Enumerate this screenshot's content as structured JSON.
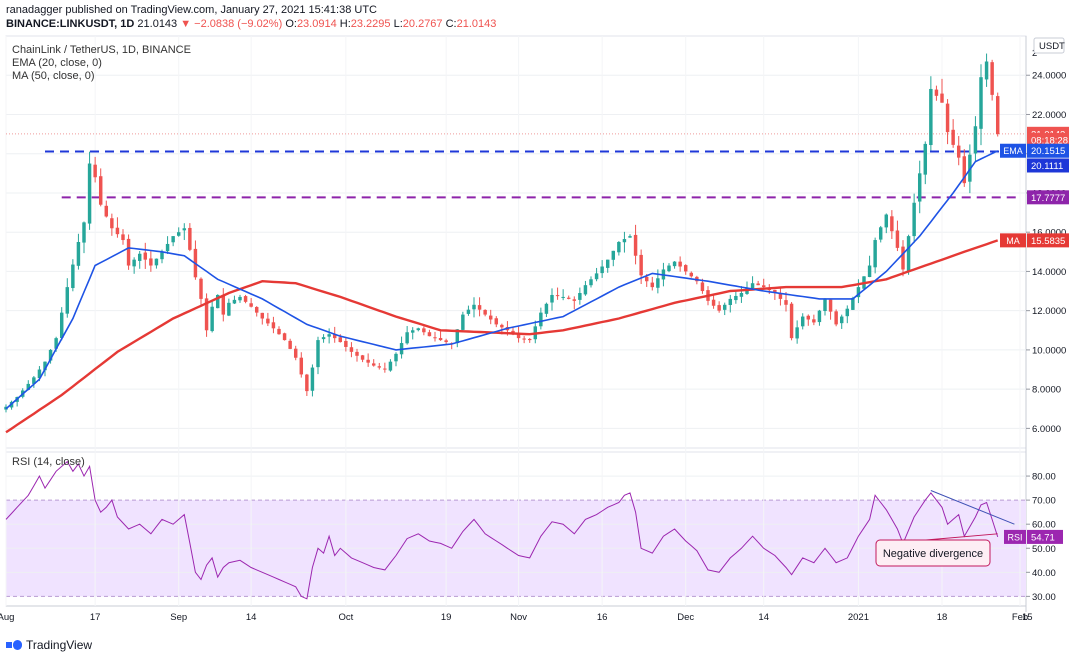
{
  "header": {
    "line1": "ranadagger published on TradingView.com, January 27, 2021 15:41:38 UTC",
    "symbol": "BINANCE:LINKUSDT, 1D",
    "price": "21.0143",
    "change": "▼ −2.0838 (−9.02%)",
    "o_label": "O:",
    "o": "23.0914",
    "h_label": "H:",
    "h": "23.2295",
    "l_label": "L:",
    "l": "20.2767",
    "c_label": "C:",
    "c": "21.0143"
  },
  "legend": {
    "title": "ChainLink / TetherUS, 1D, BINANCE",
    "ema": "EMA (20, close, 0)",
    "ma": "MA (50, close, 0)",
    "rsi": "RSI (14, close)"
  },
  "currency": "USDT",
  "annotation": "Negative divergence",
  "footer": "TradingView",
  "colors": {
    "up": "#26a69a",
    "down": "#ef5350",
    "ema": "#1e53e5",
    "ma": "#e53935",
    "rsi": "#9c27b0",
    "blue_level": "#1e37d8",
    "purple_level": "#8e24aa",
    "band": "#f0e3ff",
    "grid": "#eef0f3",
    "text": "#131722"
  },
  "chart_data": [
    {
      "type": "candlestick",
      "title": "ChainLink / TetherUS, 1D, BINANCE",
      "ylabel": "USDT",
      "ylim": [
        5.0,
        26.0
      ],
      "y_ticks": [
        6,
        8,
        10,
        12,
        14,
        16,
        18,
        20,
        22,
        24
      ],
      "y_tick_labels": [
        "6.0000",
        "8.0000",
        "10.0000",
        "12.0000",
        "14.0000",
        "16.0000",
        "18.0000",
        "20.0000",
        "22.0000",
        "24.0000"
      ],
      "top_tick_label": "2",
      "x_range_days": [
        0,
        182
      ],
      "x_ticks": [
        {
          "day": 0,
          "label": "Aug"
        },
        {
          "day": 16,
          "label": "17"
        },
        {
          "day": 31,
          "label": "Sep"
        },
        {
          "day": 44,
          "label": "14"
        },
        {
          "day": 61,
          "label": "Oct"
        },
        {
          "day": 79,
          "label": "19"
        },
        {
          "day": 92,
          "label": "Nov"
        },
        {
          "day": 107,
          "label": "16"
        },
        {
          "day": 122,
          "label": "Dec"
        },
        {
          "day": 136,
          "label": "14"
        },
        {
          "day": 153,
          "label": "2021"
        },
        {
          "day": 168,
          "label": "18"
        },
        {
          "day": 182,
          "label": "Feb"
        }
      ],
      "trailing_tick": "15",
      "close_anchors": [
        [
          0,
          7.1
        ],
        [
          2,
          7.6
        ],
        [
          5,
          8.6
        ],
        [
          7,
          9.4
        ],
        [
          9,
          10.6
        ],
        [
          11,
          13.2
        ],
        [
          13,
          15.5
        ],
        [
          14,
          16.5
        ],
        [
          15,
          19.5
        ],
        [
          16,
          18.8
        ],
        [
          17,
          17.4
        ],
        [
          18,
          16.8
        ],
        [
          19,
          16.2
        ],
        [
          21,
          15.6
        ],
        [
          22,
          14.3
        ],
        [
          24,
          14.9
        ],
        [
          26,
          14.3
        ],
        [
          28,
          15.0
        ],
        [
          30,
          15.8
        ],
        [
          32,
          16.2
        ],
        [
          33,
          15.1
        ],
        [
          34,
          13.7
        ],
        [
          35,
          12.6
        ],
        [
          36,
          11.0
        ],
        [
          37,
          12.2
        ],
        [
          38,
          12.8
        ],
        [
          39,
          11.8
        ],
        [
          40,
          12.4
        ],
        [
          42,
          12.7
        ],
        [
          44,
          12.2
        ],
        [
          46,
          11.6
        ],
        [
          48,
          11.1
        ],
        [
          50,
          10.5
        ],
        [
          52,
          9.6
        ],
        [
          54,
          7.9
        ],
        [
          55,
          9.1
        ],
        [
          56,
          10.5
        ],
        [
          58,
          10.8
        ],
        [
          60,
          10.4
        ],
        [
          62,
          9.9
        ],
        [
          64,
          9.5
        ],
        [
          66,
          9.2
        ],
        [
          68,
          9.0
        ],
        [
          70,
          9.8
        ],
        [
          72,
          10.9
        ],
        [
          74,
          11.1
        ],
        [
          76,
          10.7
        ],
        [
          78,
          10.5
        ],
        [
          80,
          10.3
        ],
        [
          82,
          11.8
        ],
        [
          84,
          12.3
        ],
        [
          86,
          11.8
        ],
        [
          88,
          11.3
        ],
        [
          90,
          11.0
        ],
        [
          92,
          10.6
        ],
        [
          94,
          10.5
        ],
        [
          96,
          11.9
        ],
        [
          98,
          12.8
        ],
        [
          100,
          12.7
        ],
        [
          102,
          12.5
        ],
        [
          104,
          13.3
        ],
        [
          106,
          13.9
        ],
        [
          108,
          14.6
        ],
        [
          110,
          15.5
        ],
        [
          112,
          15.8
        ],
        [
          114,
          13.8
        ],
        [
          116,
          13.2
        ],
        [
          118,
          14.1
        ],
        [
          120,
          14.5
        ],
        [
          122,
          14.0
        ],
        [
          124,
          13.5
        ],
        [
          126,
          12.5
        ],
        [
          128,
          12.0
        ],
        [
          130,
          12.6
        ],
        [
          132,
          12.9
        ],
        [
          134,
          13.4
        ],
        [
          136,
          13.2
        ],
        [
          138,
          12.9
        ],
        [
          140,
          12.3
        ],
        [
          141,
          10.6
        ],
        [
          143,
          11.7
        ],
        [
          145,
          11.4
        ],
        [
          147,
          12.6
        ],
        [
          149,
          11.3
        ],
        [
          151,
          12.1
        ],
        [
          153,
          13.2
        ],
        [
          155,
          14.3
        ],
        [
          156,
          15.6
        ],
        [
          158,
          16.9
        ],
        [
          160,
          15.2
        ],
        [
          161,
          14.1
        ],
        [
          163,
          17.5
        ],
        [
          165,
          20.5
        ],
        [
          166,
          23.3
        ],
        [
          168,
          22.6
        ],
        [
          169,
          21.1
        ],
        [
          171,
          19.8
        ],
        [
          172,
          18.5
        ],
        [
          174,
          21.4
        ],
        [
          175,
          23.9
        ],
        [
          176,
          24.7
        ],
        [
          177,
          23.0
        ],
        [
          178,
          21.0
        ]
      ],
      "ema_anchors": [
        [
          0,
          7.0
        ],
        [
          6,
          8.5
        ],
        [
          12,
          11.6
        ],
        [
          16,
          14.3
        ],
        [
          22,
          15.2
        ],
        [
          28,
          15.0
        ],
        [
          32,
          14.8
        ],
        [
          38,
          13.6
        ],
        [
          46,
          12.6
        ],
        [
          54,
          11.3
        ],
        [
          60,
          10.7
        ],
        [
          70,
          10.0
        ],
        [
          80,
          10.3
        ],
        [
          90,
          11.1
        ],
        [
          100,
          11.7
        ],
        [
          110,
          13.2
        ],
        [
          116,
          13.9
        ],
        [
          126,
          13.5
        ],
        [
          136,
          13.0
        ],
        [
          146,
          12.6
        ],
        [
          152,
          12.6
        ],
        [
          158,
          14.0
        ],
        [
          164,
          15.8
        ],
        [
          170,
          18.0
        ],
        [
          174,
          19.6
        ],
        [
          178,
          20.15
        ]
      ],
      "ma_anchors": [
        [
          0,
          5.8
        ],
        [
          10,
          7.7
        ],
        [
          20,
          9.9
        ],
        [
          30,
          11.6
        ],
        [
          40,
          12.9
        ],
        [
          46,
          13.5
        ],
        [
          52,
          13.4
        ],
        [
          60,
          12.7
        ],
        [
          70,
          11.7
        ],
        [
          78,
          11.0
        ],
        [
          86,
          10.9
        ],
        [
          94,
          10.8
        ],
        [
          100,
          11.0
        ],
        [
          110,
          11.6
        ],
        [
          120,
          12.4
        ],
        [
          130,
          13.0
        ],
        [
          140,
          13.2
        ],
        [
          150,
          13.2
        ],
        [
          158,
          13.6
        ],
        [
          166,
          14.4
        ],
        [
          172,
          15.0
        ],
        [
          178,
          15.58
        ]
      ],
      "levels": [
        {
          "name": "blue-resistance",
          "value": 20.1111,
          "color": "#1e37d8",
          "label": "20.1111"
        },
        {
          "name": "purple-support",
          "value": 17.7777,
          "color": "#8e24aa",
          "label": "17.7777"
        }
      ],
      "price_tags": [
        {
          "name": "last-price",
          "label": "21.0143",
          "value": 21.0143,
          "color": "#ef5350"
        },
        {
          "name": "countdown",
          "label": "08:18:28",
          "value": 20.7,
          "color": "#ef5350"
        },
        {
          "name": "ema-value",
          "prefix": "EMA",
          "label": "20.1515",
          "value": 20.1515,
          "color": "#1e53e5"
        },
        {
          "name": "blue-level",
          "label": "20.1111",
          "value": 19.4,
          "color": "#1e37d8"
        },
        {
          "name": "purple-level",
          "label": "17.7777",
          "value": 17.7777,
          "color": "#8e24aa"
        },
        {
          "name": "ma-value",
          "prefix": "MA",
          "label": "15.5835",
          "value": 15.5835,
          "color": "#e53935"
        }
      ]
    },
    {
      "type": "line",
      "title": "RSI (14, close)",
      "ylim": [
        26,
        90
      ],
      "y_ticks": [
        30,
        40,
        50,
        60,
        70,
        80
      ],
      "y_tick_labels": [
        "30.00",
        "40.00",
        "50.00",
        "60.00",
        "70.00",
        "80.00"
      ],
      "band": [
        30,
        70
      ],
      "last_value": "54.71",
      "anchors": [
        [
          0,
          62
        ],
        [
          2,
          67
        ],
        [
          4,
          72
        ],
        [
          6,
          80
        ],
        [
          7,
          75
        ],
        [
          9,
          82
        ],
        [
          11,
          86
        ],
        [
          12,
          82
        ],
        [
          13,
          85
        ],
        [
          14,
          80
        ],
        [
          15,
          84
        ],
        [
          16,
          70
        ],
        [
          17,
          65
        ],
        [
          18,
          67
        ],
        [
          19,
          70
        ],
        [
          20,
          63
        ],
        [
          22,
          58
        ],
        [
          24,
          60
        ],
        [
          26,
          56
        ],
        [
          28,
          62
        ],
        [
          30,
          60
        ],
        [
          32,
          64
        ],
        [
          33,
          52
        ],
        [
          34,
          40
        ],
        [
          35,
          37
        ],
        [
          36,
          43
        ],
        [
          37,
          46
        ],
        [
          38,
          38
        ],
        [
          39,
          42
        ],
        [
          40,
          44
        ],
        [
          42,
          45
        ],
        [
          44,
          42
        ],
        [
          46,
          40
        ],
        [
          48,
          38
        ],
        [
          50,
          36
        ],
        [
          52,
          34
        ],
        [
          53,
          30
        ],
        [
          54,
          29
        ],
        [
          55,
          42
        ],
        [
          56,
          50
        ],
        [
          57,
          48
        ],
        [
          58,
          55
        ],
        [
          59,
          47
        ],
        [
          60,
          50
        ],
        [
          62,
          46
        ],
        [
          64,
          44
        ],
        [
          66,
          42
        ],
        [
          68,
          41
        ],
        [
          70,
          47
        ],
        [
          72,
          54
        ],
        [
          74,
          56
        ],
        [
          76,
          53
        ],
        [
          78,
          52
        ],
        [
          80,
          50
        ],
        [
          82,
          57
        ],
        [
          84,
          62
        ],
        [
          86,
          56
        ],
        [
          88,
          53
        ],
        [
          90,
          50
        ],
        [
          92,
          47
        ],
        [
          94,
          46
        ],
        [
          96,
          55
        ],
        [
          98,
          61
        ],
        [
          100,
          60
        ],
        [
          102,
          56
        ],
        [
          104,
          62
        ],
        [
          106,
          64
        ],
        [
          108,
          67
        ],
        [
          110,
          69
        ],
        [
          111,
          72
        ],
        [
          112,
          73
        ],
        [
          113,
          65
        ],
        [
          114,
          50
        ],
        [
          116,
          48
        ],
        [
          118,
          55
        ],
        [
          120,
          58
        ],
        [
          122,
          53
        ],
        [
          124,
          49
        ],
        [
          126,
          41
        ],
        [
          128,
          40
        ],
        [
          130,
          46
        ],
        [
          132,
          50
        ],
        [
          134,
          55
        ],
        [
          136,
          50
        ],
        [
          138,
          47
        ],
        [
          140,
          42
        ],
        [
          141,
          39
        ],
        [
          143,
          46
        ],
        [
          145,
          44
        ],
        [
          147,
          50
        ],
        [
          149,
          44
        ],
        [
          151,
          46
        ],
        [
          153,
          55
        ],
        [
          155,
          62
        ],
        [
          156,
          72
        ],
        [
          158,
          66
        ],
        [
          160,
          58
        ],
        [
          161,
          52
        ],
        [
          163,
          63
        ],
        [
          165,
          70
        ],
        [
          166,
          73
        ],
        [
          168,
          67
        ],
        [
          169,
          60
        ],
        [
          171,
          64
        ],
        [
          172,
          55
        ],
        [
          174,
          63
        ],
        [
          175,
          68
        ],
        [
          176,
          69
        ],
        [
          177,
          62
        ],
        [
          178,
          54.71
        ]
      ],
      "trendline": {
        "from": [
          166,
          74
        ],
        "to": [
          181,
          60
        ]
      },
      "annotation": "Negative divergence"
    }
  ]
}
